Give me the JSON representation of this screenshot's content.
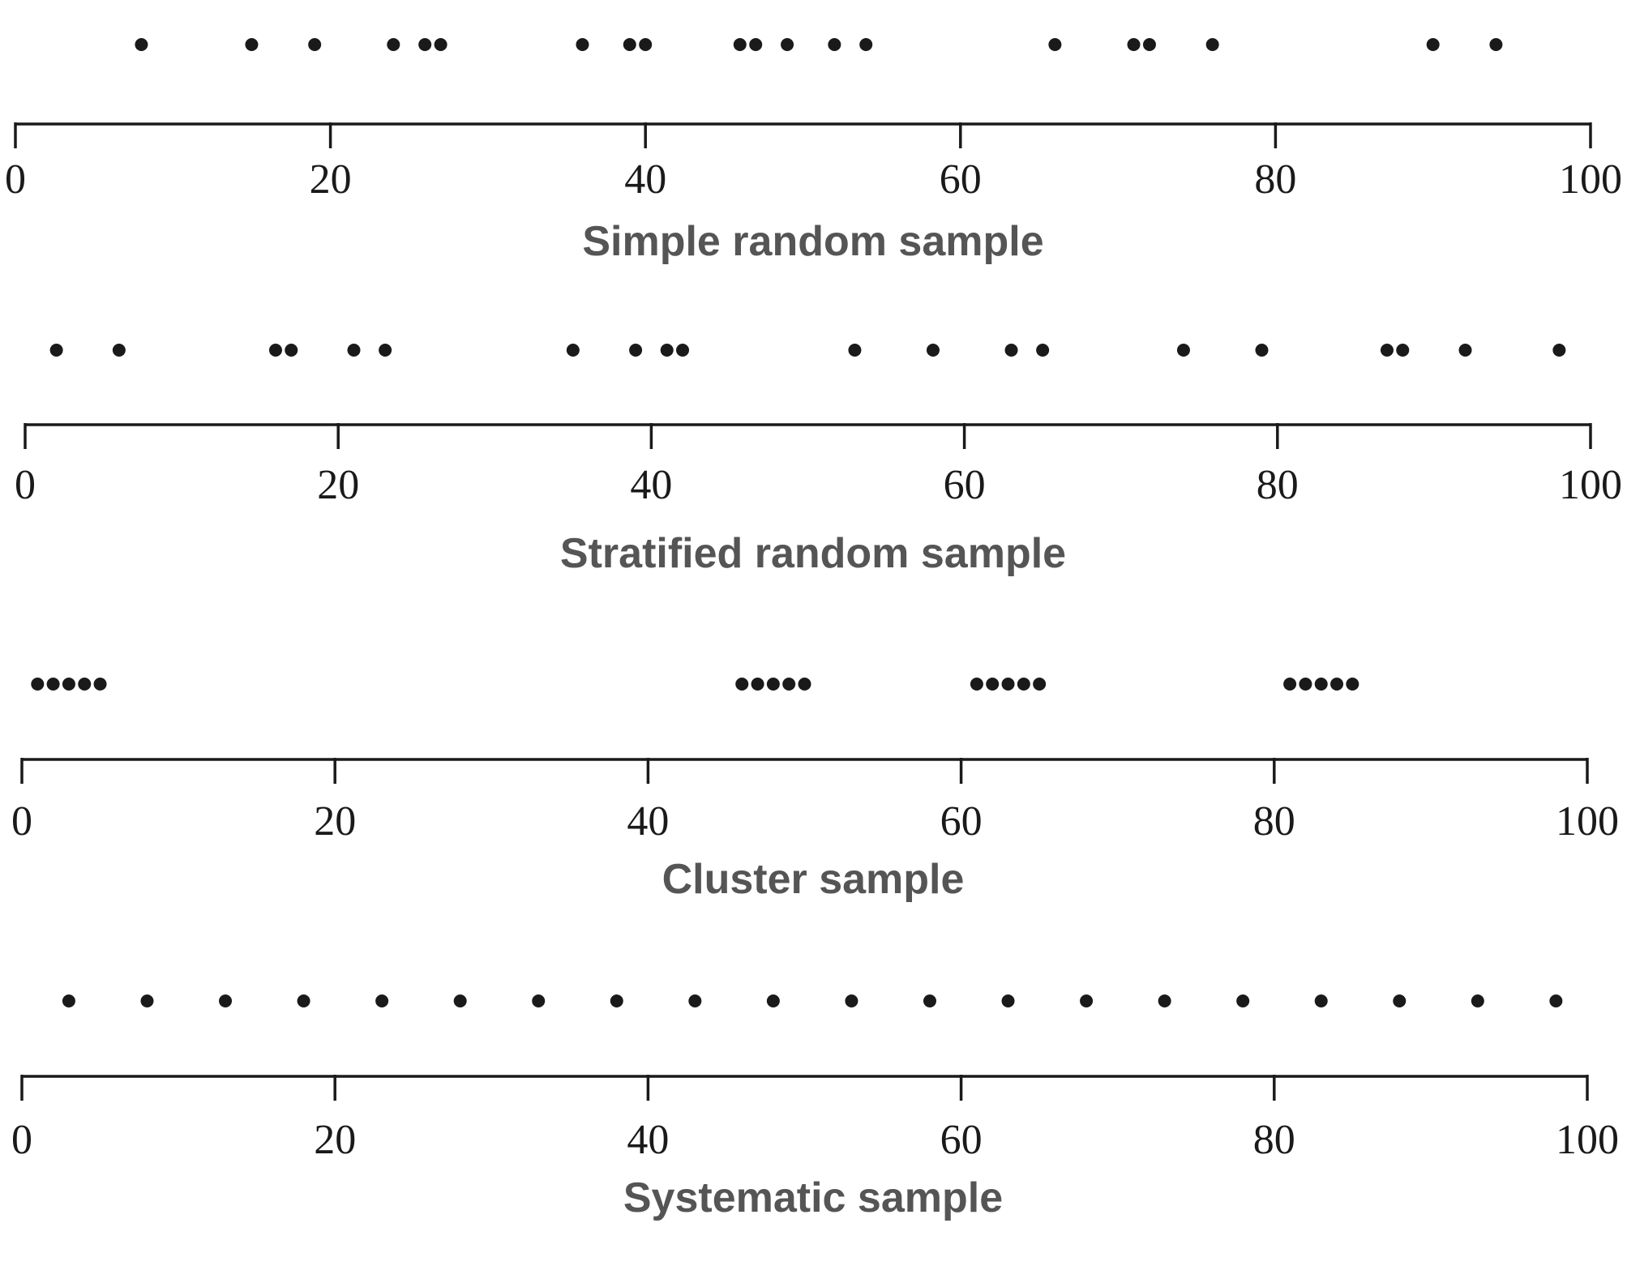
{
  "chart_data": [
    {
      "type": "scatter",
      "title": "Simple random sample",
      "xlim": [
        0,
        100
      ],
      "ticks": [
        0,
        20,
        40,
        60,
        80,
        100
      ],
      "points": [
        8,
        15,
        19,
        24,
        26,
        27,
        36,
        39,
        40,
        46,
        47,
        49,
        52,
        54,
        66,
        71,
        72,
        76,
        90,
        94
      ]
    },
    {
      "type": "scatter",
      "title": "Stratified random sample",
      "xlim": [
        0,
        100
      ],
      "ticks": [
        0,
        20,
        40,
        60,
        80,
        100
      ],
      "points": [
        2,
        6,
        16,
        17,
        21,
        23,
        35,
        39,
        41,
        42,
        53,
        58,
        63,
        65,
        74,
        79,
        87,
        88,
        92,
        98
      ]
    },
    {
      "type": "scatter",
      "title": "Cluster sample",
      "xlim": [
        0,
        100
      ],
      "ticks": [
        0,
        20,
        40,
        60,
        80,
        100
      ],
      "points": [
        1,
        2,
        3,
        4,
        5,
        46,
        47,
        48,
        49,
        50,
        61,
        62,
        63,
        64,
        65,
        81,
        82,
        83,
        84,
        85
      ]
    },
    {
      "type": "scatter",
      "title": "Systematic sample",
      "xlim": [
        0,
        100
      ],
      "ticks": [
        0,
        20,
        40,
        60,
        80,
        100
      ],
      "points": [
        3,
        8,
        13,
        18,
        23,
        28,
        33,
        38,
        43,
        48,
        53,
        58,
        63,
        68,
        73,
        78,
        83,
        88,
        93,
        98
      ]
    }
  ]
}
